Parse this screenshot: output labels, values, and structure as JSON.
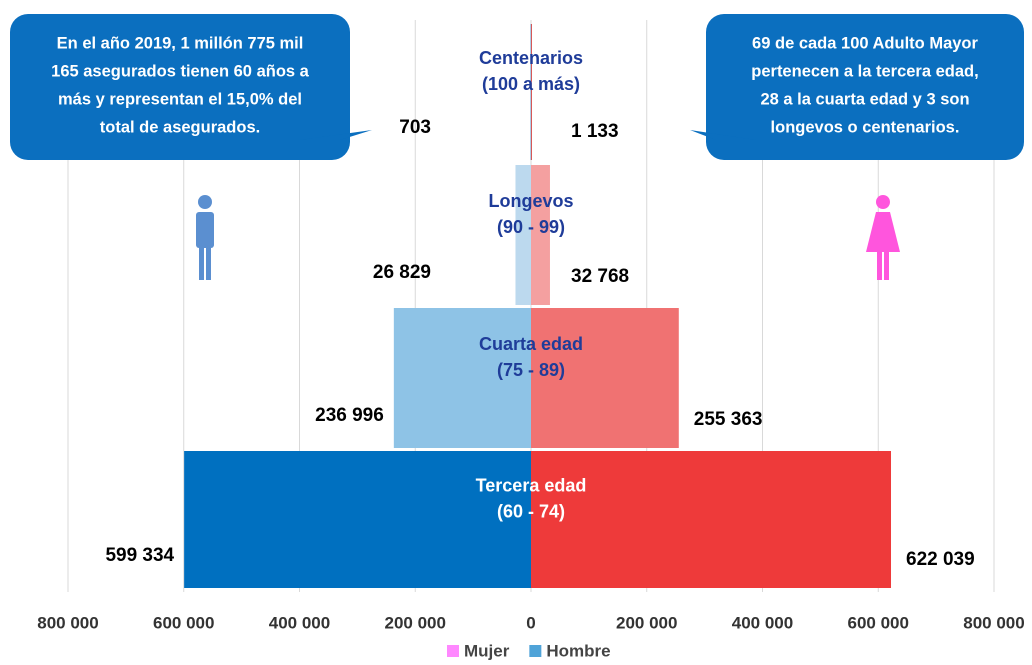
{
  "chart_data": {
    "type": "pyramid",
    "categories": [
      [
        "Centenarios",
        "(100 a más)"
      ],
      [
        "Longevos",
        "(90 - 99)"
      ],
      [
        "Cuarta edad",
        "(75 - 89)"
      ],
      [
        "Tercera edad",
        "(60 - 74)"
      ]
    ],
    "series": [
      {
        "name": "Hombre",
        "color": "#4fa3d8",
        "colors": [
          "#4a8fcc",
          "#bcd9ee",
          "#8ec3e6",
          "#0070c0"
        ],
        "values": [
          703,
          26829,
          236996,
          599334
        ],
        "value_labels": [
          "703",
          "26 829",
          "236 996",
          "599 334"
        ]
      },
      {
        "name": "Mujer",
        "color": "#ff88ff",
        "colors": [
          "#c00000",
          "#f4a0a0",
          "#f07272",
          "#ee3a3a"
        ],
        "values": [
          1133,
          32768,
          255363,
          622039
        ],
        "value_labels": [
          "1 133",
          "32 768",
          "255 363",
          "622 039"
        ]
      }
    ],
    "xlim": [
      -800000,
      800000
    ],
    "xticks": [
      {
        "value": -800000,
        "label": "800 000"
      },
      {
        "value": -600000,
        "label": "600 000"
      },
      {
        "value": -400000,
        "label": "400 000"
      },
      {
        "value": -200000,
        "label": "200 000"
      },
      0,
      {
        "value": 200000,
        "label": "200 000"
      },
      {
        "value": 400000,
        "label": "400 000"
      },
      {
        "value": 600000,
        "label": "600 000"
      },
      {
        "value": 800000,
        "label": "800 000"
      }
    ],
    "grid": true,
    "annotations": [
      [
        "En el año 2019, 1 millón 775 mil",
        "165 asegurados tienen 60 años a",
        "más y representan el 15,0% del",
        "total de asegurados."
      ],
      [
        "69 de cada 100 Adulto Mayor",
        "pertenecen a la tercera edad,",
        "28 a la cuarta edad y 3 son",
        "longevos o centenarios."
      ]
    ],
    "legend_order": [
      "Mujer",
      "Hombre"
    ]
  }
}
